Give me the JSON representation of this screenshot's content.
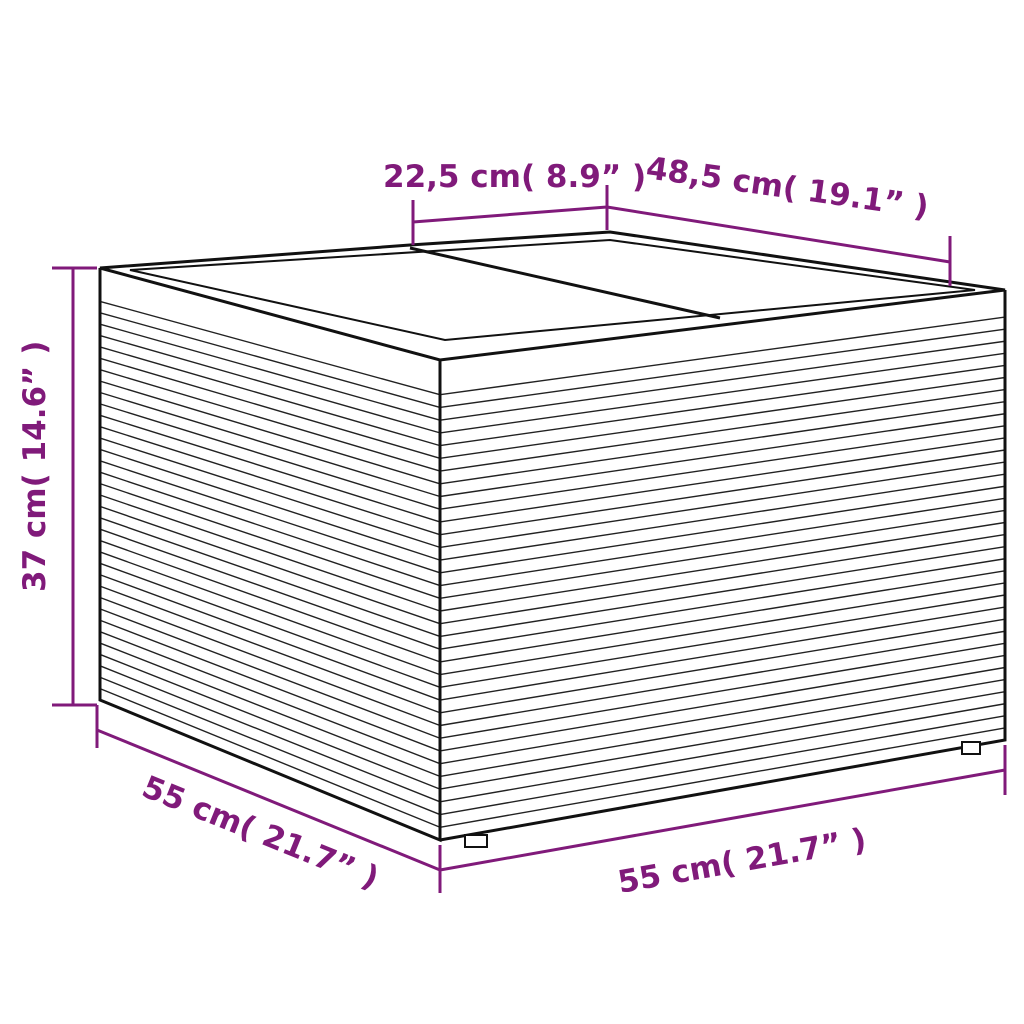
{
  "dimensions": {
    "top_lid_width": "22,5 cm( 8.9”  )",
    "top_depth": "48,5 cm( 19.1”  )",
    "height": "37 cm( 14.6”  )",
    "left_width": "55 cm( 21.7”  )",
    "front_width": "55 cm( 21.7”  )"
  },
  "colors": {
    "dimension": "#801a7a",
    "outline": "#111111"
  }
}
